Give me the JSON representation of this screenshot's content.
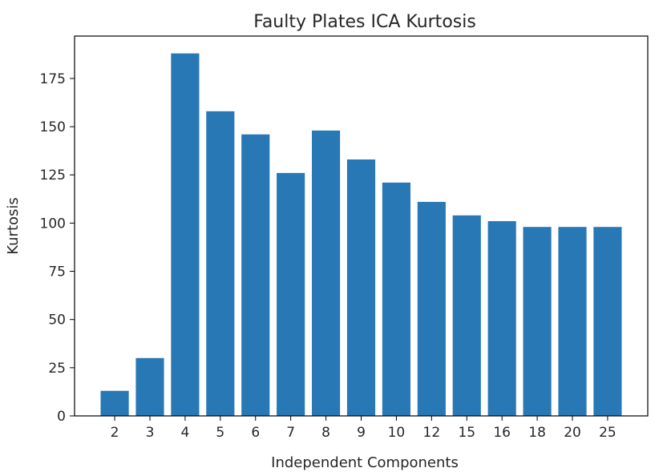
{
  "chart_data": {
    "type": "bar",
    "title": "Faulty Plates ICA Kurtosis",
    "xlabel": "Independent Components",
    "ylabel": "Kurtosis",
    "categories": [
      "2",
      "3",
      "4",
      "5",
      "6",
      "7",
      "8",
      "9",
      "10",
      "12",
      "15",
      "16",
      "18",
      "20",
      "25"
    ],
    "values": [
      13,
      30,
      188,
      158,
      146,
      126,
      148,
      133,
      121,
      111,
      104,
      101,
      98,
      98,
      98
    ],
    "ylim": [
      0,
      197
    ],
    "yticks": [
      0,
      25,
      50,
      75,
      100,
      125,
      150,
      175
    ],
    "bar_color": "#2878b5",
    "grid": false,
    "legend": "none"
  }
}
